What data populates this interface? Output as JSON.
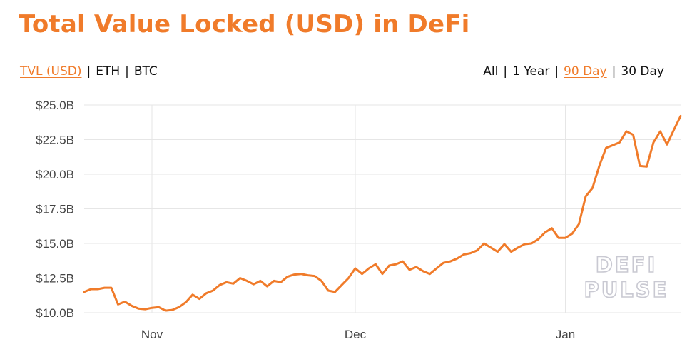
{
  "header": {
    "title": "Total Value Locked (USD) in DeFi"
  },
  "metric_tabs": [
    {
      "label": "TVL (USD)",
      "active": true
    },
    {
      "label": "ETH",
      "active": false
    },
    {
      "label": "BTC",
      "active": false
    }
  ],
  "range_tabs": [
    {
      "label": "All",
      "active": false
    },
    {
      "label": "1 Year",
      "active": false
    },
    {
      "label": "90 Day",
      "active": true
    },
    {
      "label": "30 Day",
      "active": false
    }
  ],
  "separator": "|",
  "watermark": {
    "line1": "DEFI",
    "line2": "PULSE"
  },
  "colors": {
    "accent": "#f07b2a",
    "grid": "#e6e6e6",
    "text": "#111111"
  },
  "chart_data": {
    "type": "line",
    "title": "Total Value Locked (USD) in DeFi",
    "xlabel": "",
    "ylabel": "",
    "ylim": [
      10.0,
      25.0
    ],
    "y_ticks": [
      10.0,
      12.5,
      15.0,
      17.5,
      20.0,
      22.5,
      25.0
    ],
    "y_tick_labels": [
      "$10.0B",
      "$12.5B",
      "$15.0B",
      "$17.5B",
      "$20.0B",
      "$22.5B",
      "$25.0B"
    ],
    "x_ticks": [
      "Nov",
      "Dec",
      "Jan"
    ],
    "x_tick_days": [
      0,
      30,
      61
    ],
    "x_start_day": -10,
    "x_end_day": 77,
    "grid": true,
    "series": [
      {
        "color": "#f07b2a",
        "points": [
          [
            -10,
            11.5
          ],
          [
            -9,
            11.7
          ],
          [
            -8,
            11.7
          ],
          [
            -7,
            11.8
          ],
          [
            -6,
            11.8
          ],
          [
            -5,
            10.6
          ],
          [
            -4,
            10.8
          ],
          [
            -3,
            10.5
          ],
          [
            -2,
            10.3
          ],
          [
            -1,
            10.25
          ],
          [
            0,
            10.35
          ],
          [
            1,
            10.4
          ],
          [
            2,
            10.15
          ],
          [
            3,
            10.2
          ],
          [
            4,
            10.4
          ],
          [
            5,
            10.75
          ],
          [
            6,
            11.3
          ],
          [
            7,
            11.0
          ],
          [
            8,
            11.4
          ],
          [
            9,
            11.6
          ],
          [
            10,
            12.0
          ],
          [
            11,
            12.2
          ],
          [
            12,
            12.1
          ],
          [
            13,
            12.5
          ],
          [
            14,
            12.3
          ],
          [
            15,
            12.05
          ],
          [
            16,
            12.3
          ],
          [
            17,
            11.9
          ],
          [
            18,
            12.3
          ],
          [
            19,
            12.2
          ],
          [
            20,
            12.6
          ],
          [
            21,
            12.75
          ],
          [
            22,
            12.8
          ],
          [
            23,
            12.7
          ],
          [
            24,
            12.65
          ],
          [
            25,
            12.3
          ],
          [
            26,
            11.6
          ],
          [
            27,
            11.5
          ],
          [
            28,
            12.0
          ],
          [
            29,
            12.5
          ],
          [
            30,
            13.2
          ],
          [
            31,
            12.8
          ],
          [
            32,
            13.2
          ],
          [
            33,
            13.5
          ],
          [
            34,
            12.8
          ],
          [
            35,
            13.4
          ],
          [
            36,
            13.5
          ],
          [
            37,
            13.7
          ],
          [
            38,
            13.1
          ],
          [
            39,
            13.3
          ],
          [
            40,
            13.0
          ],
          [
            41,
            12.8
          ],
          [
            42,
            13.2
          ],
          [
            43,
            13.6
          ],
          [
            44,
            13.7
          ],
          [
            45,
            13.9
          ],
          [
            46,
            14.2
          ],
          [
            47,
            14.3
          ],
          [
            48,
            14.5
          ],
          [
            49,
            15.0
          ],
          [
            50,
            14.7
          ],
          [
            51,
            14.4
          ],
          [
            52,
            14.95
          ],
          [
            53,
            14.4
          ],
          [
            54,
            14.7
          ],
          [
            55,
            14.95
          ],
          [
            56,
            15.0
          ],
          [
            57,
            15.3
          ],
          [
            58,
            15.8
          ],
          [
            59,
            16.1
          ],
          [
            60,
            15.4
          ],
          [
            61,
            15.4
          ],
          [
            62,
            15.7
          ],
          [
            63,
            16.4
          ],
          [
            64,
            18.4
          ],
          [
            65,
            19.0
          ],
          [
            66,
            20.6
          ],
          [
            67,
            21.9
          ],
          [
            68,
            22.1
          ],
          [
            69,
            22.3
          ],
          [
            70,
            23.1
          ],
          [
            71,
            22.85
          ],
          [
            72,
            20.6
          ],
          [
            73,
            20.55
          ],
          [
            74,
            22.3
          ],
          [
            75,
            23.1
          ],
          [
            76,
            22.15
          ],
          [
            77,
            23.2
          ],
          [
            78,
            24.2
          ]
        ]
      }
    ]
  }
}
